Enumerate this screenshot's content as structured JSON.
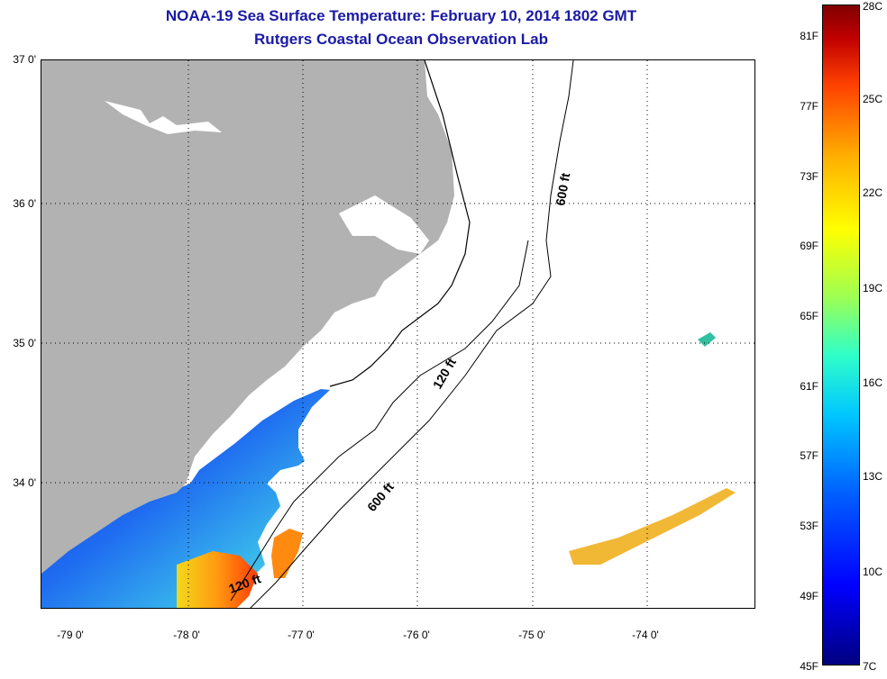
{
  "title": {
    "line1": "NOAA-19 Sea Surface Temperature:  February 10, 2014 1802 GMT",
    "line2": "Rutgers Coastal Ocean Observation Lab"
  },
  "map": {
    "y_axis_labels": [
      "37 0'",
      "36 0'",
      "35 0'",
      "34 0'"
    ],
    "x_axis_labels": [
      "-79 0'",
      "-78 0'",
      "-77 0'",
      "-76 0'",
      "-75 0'",
      "-74 0'"
    ],
    "contour_labels": {
      "shelf_north": "600 ft",
      "shelf_south": "600 ft",
      "mid_north": "120 ft",
      "mid_south": "120 ft"
    },
    "colors": {
      "land": "#b2b2b2",
      "ocean_no_data": "#ffffff"
    }
  },
  "colorbar": {
    "fahrenheit": [
      "81F",
      "77F",
      "73F",
      "69F",
      "65F",
      "61F",
      "57F",
      "53F",
      "49F",
      "45F"
    ],
    "celsius": [
      "28C",
      "25C",
      "22C",
      "19C",
      "16C",
      "13C",
      "10C",
      "7C"
    ],
    "min_c": 7,
    "max_c": 28,
    "min_f": 45,
    "max_f": 82
  }
}
